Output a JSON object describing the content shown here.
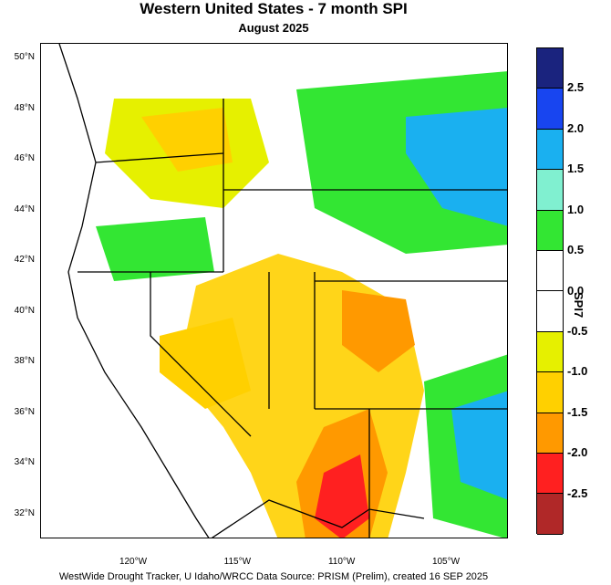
{
  "title": "Western United States - 7 month SPI",
  "subtitle": "August 2025",
  "latitude_labels": [
    {
      "label": "50°N",
      "value": 50
    },
    {
      "label": "48°N",
      "value": 48
    },
    {
      "label": "46°N",
      "value": 46
    },
    {
      "label": "44°N",
      "value": 44
    },
    {
      "label": "42°N",
      "value": 42
    },
    {
      "label": "40°N",
      "value": 40
    },
    {
      "label": "38°N",
      "value": 38
    },
    {
      "label": "36°N",
      "value": 36
    },
    {
      "label": "34°N",
      "value": 34
    },
    {
      "label": "32°N",
      "value": 32
    }
  ],
  "longitude_labels": [
    {
      "label": "120°W",
      "value": -120
    },
    {
      "label": "115°W",
      "value": -115
    },
    {
      "label": "110°W",
      "value": -110
    },
    {
      "label": "105°W",
      "value": -105
    }
  ],
  "legend": {
    "title": "SPI7",
    "tick_labels": [
      "2.5",
      "2.0",
      "1.5",
      "1.0",
      "0.5",
      "0.0",
      "-0.5",
      "-1.0",
      "-1.5",
      "-2.0",
      "-2.5"
    ],
    "colors": [
      "#1a237e",
      "#1845f0",
      "#1ab0f0",
      "#80f0d0",
      "#33e633",
      "#ffffff",
      "#ffffff",
      "#e6f000",
      "#ffd000",
      "#ff9900",
      "#ff2020",
      "#b02828"
    ]
  },
  "footer": "WestWide Drought Tracker, U Idaho/WRCC Data Source: PRISM (Prelim), created 16 SEP 2025"
}
